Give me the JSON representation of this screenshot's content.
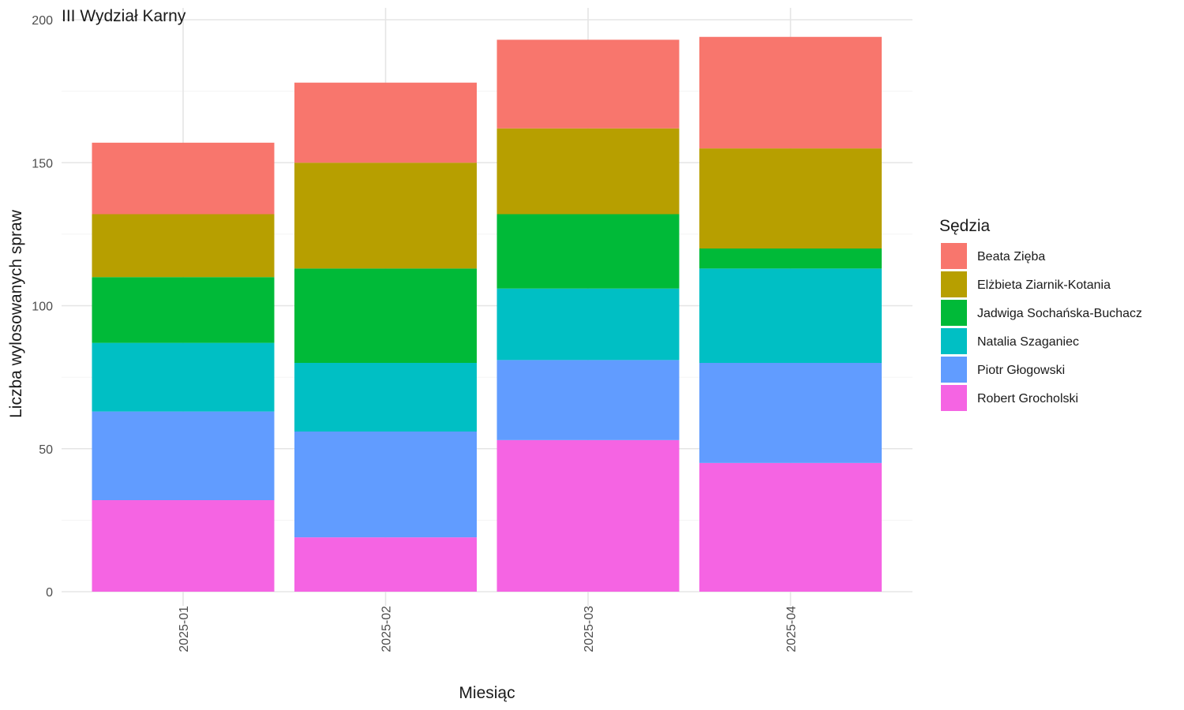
{
  "chart_data": {
    "type": "bar",
    "stacked": true,
    "subtitle": "III Wydział Karny",
    "xlabel": "Miesiąc",
    "ylabel": "Liczba wylosowanych spraw",
    "ylim": [
      0,
      200
    ],
    "yticks": [
      0,
      50,
      100,
      150,
      200
    ],
    "grid": true,
    "legend_title": "Sędzia",
    "legend_position": "right",
    "categories": [
      "2025-01",
      "2025-02",
      "2025-03",
      "2025-04"
    ],
    "series": [
      {
        "name": "Beata Zięba",
        "color": "#F8766D",
        "values": [
          25,
          28,
          31,
          39
        ]
      },
      {
        "name": "Elżbieta Ziarnik-Kotania",
        "color": "#B79F00",
        "values": [
          22,
          37,
          30,
          35
        ]
      },
      {
        "name": "Jadwiga Sochańska-Buchacz",
        "color": "#00BA38",
        "values": [
          23,
          33,
          26,
          7
        ]
      },
      {
        "name": "Natalia Szaganiec",
        "color": "#00BFC4",
        "values": [
          24,
          24,
          25,
          33
        ]
      },
      {
        "name": "Piotr Głogowski",
        "color": "#619CFF",
        "values": [
          31,
          37,
          28,
          35
        ]
      },
      {
        "name": "Robert Grocholski",
        "color": "#F564E3",
        "values": [
          32,
          19,
          53,
          45
        ]
      }
    ]
  }
}
